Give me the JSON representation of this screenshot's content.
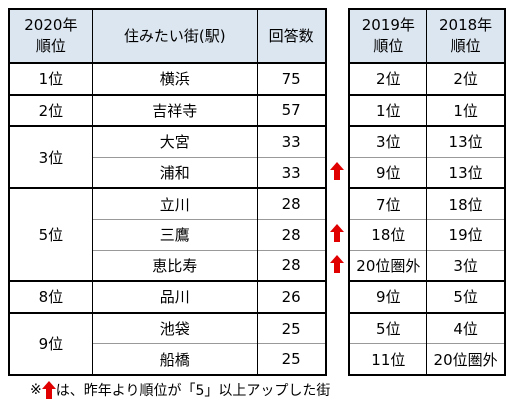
{
  "header": {
    "rank_2020": [
      "2020年",
      "順位"
    ],
    "name": "住みたい街(駅)",
    "votes": "回答数",
    "rank_2019": [
      "2019年",
      "順位"
    ],
    "rank_2018": [
      "2018年",
      "順位"
    ]
  },
  "groups": [
    {
      "rank": "1位",
      "rows": [
        {
          "name": "横浜",
          "votes": 75,
          "up": false,
          "rank_2019": "2位",
          "rank_2018": "2位"
        }
      ]
    },
    {
      "rank": "2位",
      "rows": [
        {
          "name": "吉祥寺",
          "votes": 57,
          "up": false,
          "rank_2019": "1位",
          "rank_2018": "1位"
        }
      ]
    },
    {
      "rank": "3位",
      "rows": [
        {
          "name": "大宮",
          "votes": 33,
          "up": false,
          "rank_2019": "3位",
          "rank_2018": "13位"
        },
        {
          "name": "浦和",
          "votes": 33,
          "up": true,
          "rank_2019": "9位",
          "rank_2018": "13位"
        }
      ]
    },
    {
      "rank": "5位",
      "rows": [
        {
          "name": "立川",
          "votes": 28,
          "up": false,
          "rank_2019": "7位",
          "rank_2018": "18位"
        },
        {
          "name": "三鷹",
          "votes": 28,
          "up": true,
          "rank_2019": "18位",
          "rank_2018": "19位"
        },
        {
          "name": "恵比寿",
          "votes": 28,
          "up": true,
          "rank_2019": "20位圏外",
          "rank_2018": "3位"
        }
      ]
    },
    {
      "rank": "8位",
      "rows": [
        {
          "name": "品川",
          "votes": 26,
          "up": false,
          "rank_2019": "9位",
          "rank_2018": "5位"
        }
      ]
    },
    {
      "rank": "9位",
      "rows": [
        {
          "name": "池袋",
          "votes": 25,
          "up": false,
          "rank_2019": "5位",
          "rank_2018": "4位"
        },
        {
          "name": "船橋",
          "votes": 25,
          "up": false,
          "rank_2019": "11位",
          "rank_2018": "20位圏外"
        }
      ]
    }
  ],
  "footnote": {
    "mark": "※",
    "text": "は、昨年より順位が「5」以上アップした街"
  }
}
